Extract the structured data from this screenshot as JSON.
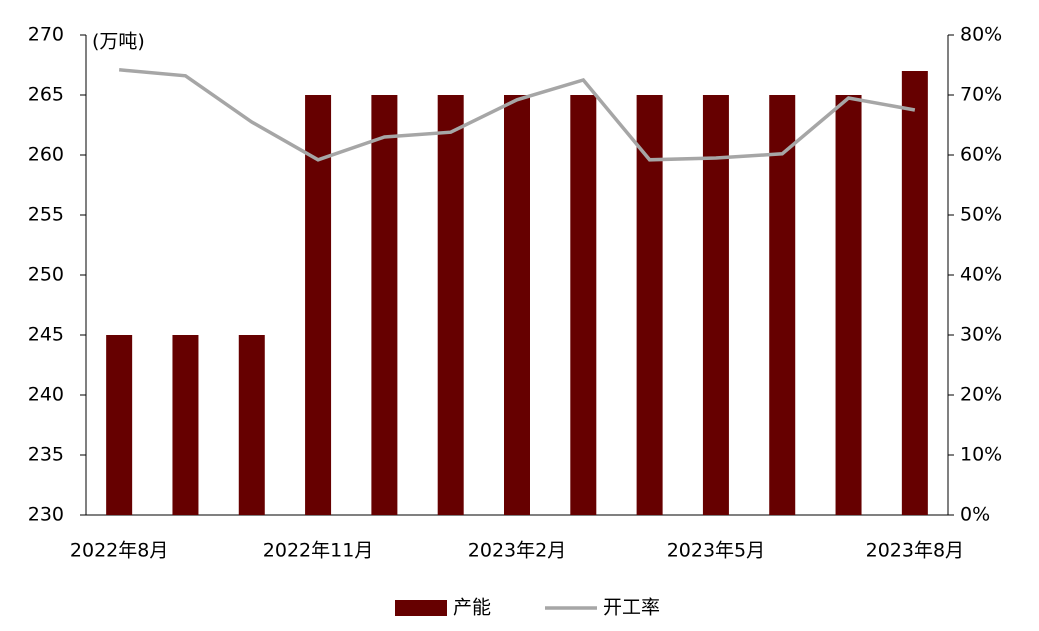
{
  "chart_data": {
    "type": "combo",
    "y_unit_label": "(万吨)",
    "categories": [
      "2022年8月",
      null,
      null,
      "2022年11月",
      null,
      null,
      "2023年2月",
      null,
      null,
      "2023年5月",
      null,
      null,
      "2023年8月"
    ],
    "series": [
      {
        "name": "产能",
        "type": "bar",
        "color": "#660000",
        "values": [
          245,
          245,
          245,
          265,
          265,
          265,
          265,
          265,
          265,
          265,
          265,
          265,
          267
        ]
      },
      {
        "name": "开工率",
        "type": "line",
        "axis": "y2",
        "color": "#a6a6a6",
        "values": [
          74.2,
          73.2,
          65.5,
          59.2,
          63,
          63.8,
          69.2,
          72.5,
          59.2,
          59.5,
          60.2,
          69.5,
          67.5
        ]
      }
    ],
    "ylim": [
      230,
      270
    ],
    "yticks": [
      230,
      235,
      240,
      245,
      250,
      255,
      260,
      265,
      270
    ],
    "y2lim": [
      0,
      80
    ],
    "y2ticks": [
      {
        "value": 0,
        "label": "0%"
      },
      {
        "value": 10,
        "label": "10%"
      },
      {
        "value": 20,
        "label": "20%"
      },
      {
        "value": 30,
        "label": "30%"
      },
      {
        "value": 40,
        "label": "40%"
      },
      {
        "value": 50,
        "label": "50%"
      },
      {
        "value": 60,
        "label": "60%"
      },
      {
        "value": 70,
        "label": "70%"
      },
      {
        "value": 80,
        "label": "80%"
      }
    ],
    "legend": "bottom"
  }
}
